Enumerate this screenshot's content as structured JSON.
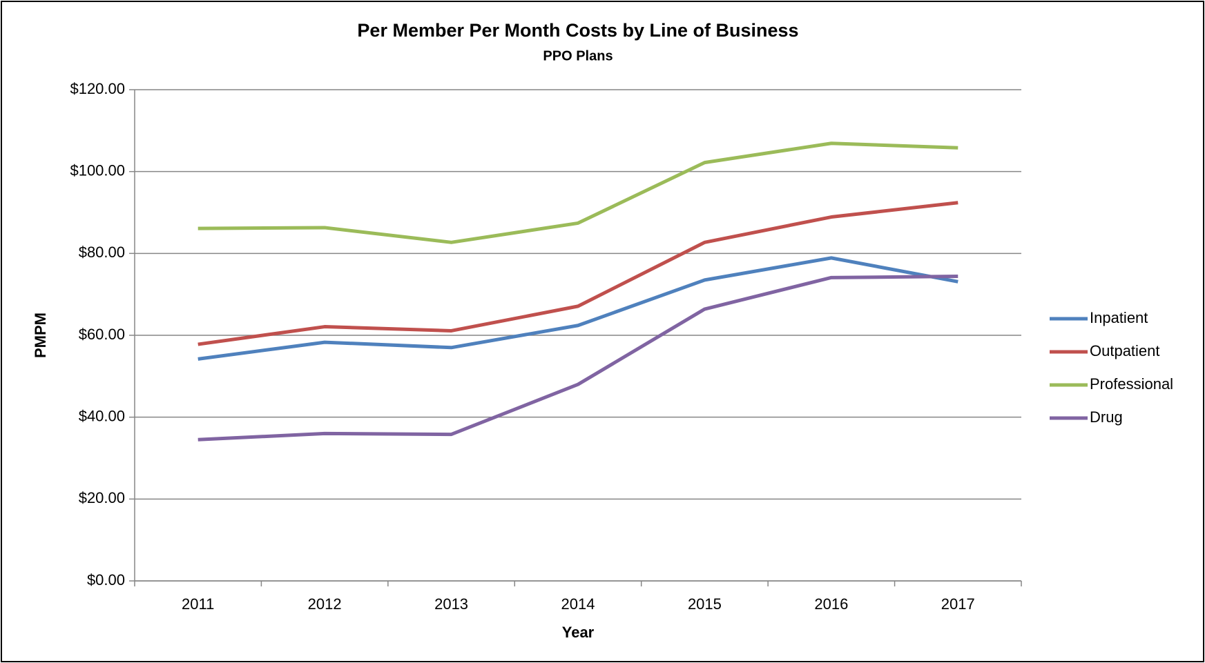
{
  "chart_data": {
    "type": "line",
    "title": "Per Member Per Month Costs by Line of Business",
    "subtitle": "PPO Plans",
    "xlabel": "Year",
    "ylabel": "PMPM",
    "categories": [
      "2011",
      "2012",
      "2013",
      "2014",
      "2015",
      "2016",
      "2017"
    ],
    "series": [
      {
        "name": "Inpatient",
        "color": "#4f81bd",
        "values": [
          54.2,
          58.3,
          57.0,
          62.4,
          73.5,
          78.9,
          73.1
        ]
      },
      {
        "name": "Outpatient",
        "color": "#c0504d",
        "values": [
          57.8,
          62.1,
          61.1,
          67.1,
          82.7,
          88.9,
          92.4
        ]
      },
      {
        "name": "Professional",
        "color": "#9bbb59",
        "values": [
          86.1,
          86.3,
          82.7,
          87.4,
          102.2,
          106.9,
          105.8
        ]
      },
      {
        "name": "Drug",
        "color": "#8064a2",
        "values": [
          34.5,
          36.0,
          35.8,
          48.0,
          66.4,
          74.1,
          74.4
        ]
      }
    ],
    "ylim": [
      0,
      120
    ],
    "yticks": [
      {
        "value": 0,
        "label": "$0.00"
      },
      {
        "value": 20,
        "label": "$20.00"
      },
      {
        "value": 40,
        "label": "$40.00"
      },
      {
        "value": 60,
        "label": "$60.00"
      },
      {
        "value": 80,
        "label": "$80.00"
      },
      {
        "value": 100,
        "label": "$100.00"
      },
      {
        "value": 120,
        "label": "$120.00"
      }
    ],
    "grid": true,
    "legend": "right"
  }
}
